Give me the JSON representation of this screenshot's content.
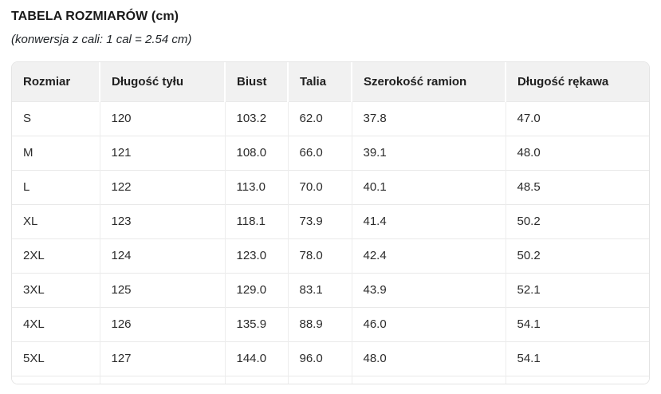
{
  "page": {
    "title": "TABELA ROZMIARÓW (cm)",
    "subtitle": "(konwersja z cali: 1 cal = 2.54 cm)"
  },
  "table": {
    "columns": [
      "Rozmiar",
      "Długość tyłu",
      "Biust",
      "Talia",
      "Szerokość ramion",
      "Długość rękawa"
    ],
    "rows": [
      [
        "S",
        "120",
        "103.2",
        "62.0",
        "37.8",
        "47.0"
      ],
      [
        "M",
        "121",
        "108.0",
        "66.0",
        "39.1",
        "48.0"
      ],
      [
        "L",
        "122",
        "113.0",
        "70.0",
        "40.1",
        "48.5"
      ],
      [
        "XL",
        "123",
        "118.1",
        "73.9",
        "41.4",
        "50.2"
      ],
      [
        "2XL",
        "124",
        "123.0",
        "78.0",
        "42.4",
        "50.2"
      ],
      [
        "3XL",
        "125",
        "129.0",
        "83.1",
        "43.9",
        "52.1"
      ],
      [
        "4XL",
        "126",
        "135.9",
        "88.9",
        "46.0",
        "54.1"
      ],
      [
        "5XL",
        "127",
        "144.0",
        "96.0",
        "48.0",
        "54.1"
      ]
    ]
  },
  "colors": {
    "header_bg": "#f1f1f1",
    "card_border": "#e4e4e4",
    "row_border": "#e9e9e9",
    "text": "#212529"
  }
}
